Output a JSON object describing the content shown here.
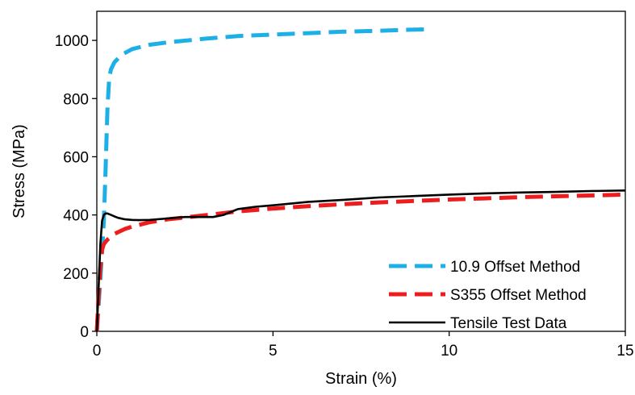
{
  "chart_data": {
    "type": "line",
    "title": "",
    "xlabel": "Strain (%)",
    "ylabel": "Stress (MPa)",
    "xlim": [
      0,
      15
    ],
    "ylim": [
      0,
      1100
    ],
    "xticks": [
      0,
      5,
      10,
      15
    ],
    "yticks": [
      0,
      200,
      400,
      600,
      800,
      1000
    ],
    "grid": false,
    "legend_position": "bottom-right",
    "series": [
      {
        "name": "10.9 Offset Method",
        "color": "#1CB0E6",
        "style": "dashed",
        "x": [
          0,
          0.1,
          0.2,
          0.25,
          0.3,
          0.35,
          0.4,
          0.5,
          0.7,
          1.0,
          1.5,
          2.0,
          3.0,
          4.0,
          5.0,
          6.0,
          7.0,
          8.0,
          9.0,
          9.4
        ],
        "y": [
          0,
          180,
          380,
          560,
          760,
          870,
          900,
          925,
          950,
          970,
          985,
          993,
          1005,
          1015,
          1020,
          1025,
          1030,
          1033,
          1037,
          1038
        ]
      },
      {
        "name": "S355 Offset Method",
        "color": "#EE1C1C",
        "style": "dashed",
        "x": [
          0,
          0.05,
          0.1,
          0.15,
          0.2,
          0.3,
          0.5,
          0.8,
          1.0,
          1.5,
          2.0,
          3.0,
          4.0,
          5.0,
          6.0,
          7.0,
          8.0,
          9.0,
          10.0,
          11.0,
          12.0,
          13.0,
          14.0,
          15.0
        ],
        "y": [
          0,
          120,
          220,
          280,
          300,
          315,
          335,
          352,
          360,
          375,
          385,
          398,
          412,
          422,
          430,
          437,
          443,
          448,
          453,
          457,
          461,
          464,
          467,
          470
        ]
      },
      {
        "name": "Tensile Test Data",
        "color": "#000000",
        "style": "solid",
        "x": [
          0,
          0.05,
          0.1,
          0.15,
          0.2,
          0.25,
          0.3,
          0.4,
          0.5,
          0.6,
          0.8,
          1.0,
          1.2,
          1.5,
          2.0,
          2.5,
          3.0,
          3.3,
          3.6,
          3.8,
          4.0,
          4.5,
          5.0,
          6.0,
          7.0,
          8.0,
          9.0,
          10.0,
          11.0,
          12.0,
          13.0,
          14.0,
          15.0
        ],
        "y": [
          0,
          150,
          300,
          380,
          400,
          405,
          405,
          400,
          395,
          390,
          385,
          383,
          382,
          383,
          388,
          393,
          393,
          393,
          400,
          410,
          420,
          428,
          433,
          445,
          452,
          460,
          465,
          470,
          474,
          477,
          479,
          482,
          484
        ]
      }
    ]
  }
}
